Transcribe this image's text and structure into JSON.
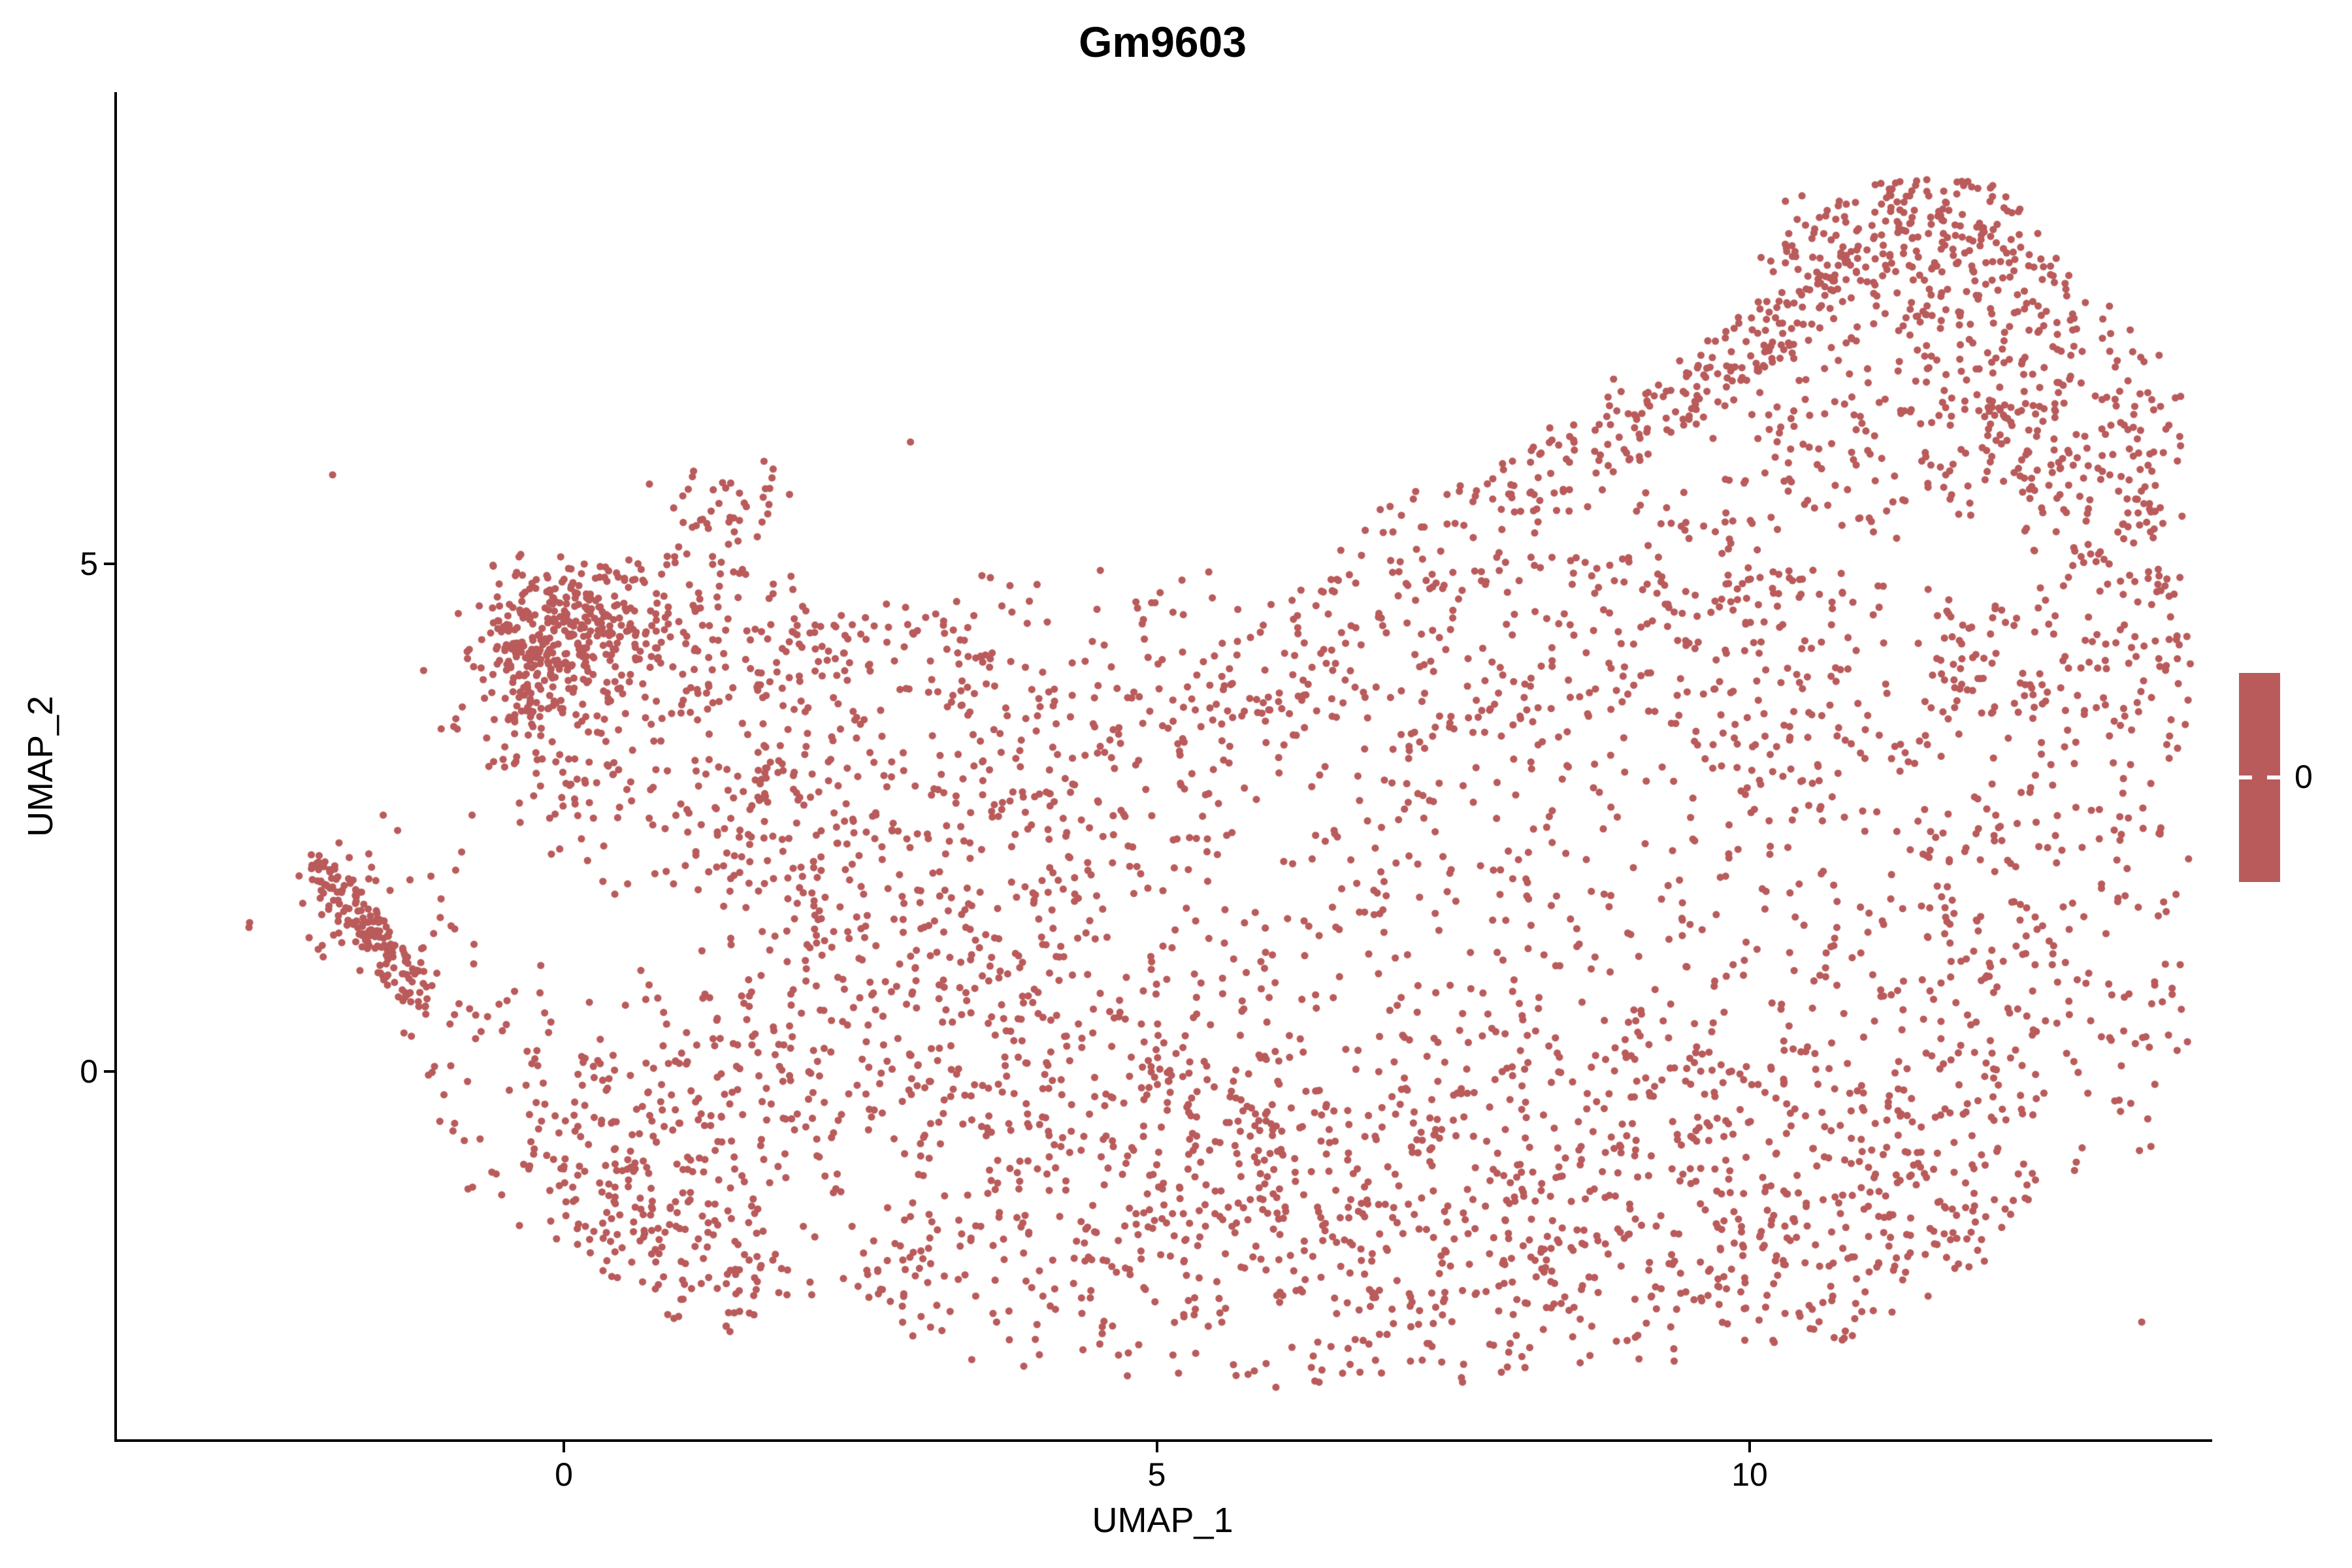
{
  "title": "Gm9603",
  "axes": {
    "x_label": "UMAP_1",
    "y_label": "UMAP_2",
    "x_ticks": [
      {
        "label": "0",
        "value": 0
      },
      {
        "label": "5",
        "value": 5
      },
      {
        "label": "10",
        "value": 10
      }
    ],
    "y_ticks": [
      {
        "label": "5",
        "value": 5
      },
      {
        "label": "0",
        "value": 0
      }
    ]
  },
  "legend": {
    "type": "colorbar",
    "tick_label": "0",
    "color": "#BA5B5B"
  },
  "colors": {
    "point": "#BA5B5B",
    "axis": "#000000",
    "background": "#FFFFFF",
    "text": "#000000"
  },
  "chart_data": {
    "type": "scatter",
    "title": "Gm9603",
    "xlabel": "UMAP_1",
    "ylabel": "UMAP_2",
    "xlim": [
      -3.78,
      13.85
    ],
    "ylim": [
      -3.62,
      9.65
    ],
    "x_ticks": [
      0,
      5,
      10
    ],
    "y_ticks": [
      0,
      5
    ],
    "grid": false,
    "legend_position": "right",
    "legend_values": [
      0
    ],
    "point_color": "#BA5B5B",
    "point_radius_px": 5.6,
    "n_points_estimate": 5400,
    "description": "UMAP embedding of single cells; every cell has expression value 0 for gene Gm9603, so all points share one red color. Shape: large main body sloping down-left, dense upper-left cluster, thin hooked tail at far left, and large peaked lobe at upper right.",
    "seed": 42,
    "clusters_format": [
      "cx",
      "cy",
      "rx",
      "ry",
      "rot_deg",
      "n",
      "dist(g=gauss,u=uniform)"
    ],
    "clusters": [
      [
        -1.78,
        1.62,
        0.62,
        0.17,
        -55,
        95,
        "u"
      ],
      [
        -1.42,
        1.02,
        0.55,
        0.17,
        -55,
        70,
        "u"
      ],
      [
        -1.55,
        1.55,
        0.85,
        0.75,
        0,
        45,
        "g"
      ],
      [
        0.15,
        4.3,
        0.8,
        0.7,
        0,
        240,
        "g"
      ],
      [
        0.75,
        3.8,
        1.75,
        1.35,
        0,
        300,
        "u"
      ],
      [
        -0.35,
        4.1,
        0.28,
        0.95,
        5,
        100,
        "g"
      ],
      [
        1.35,
        5.55,
        0.55,
        0.38,
        20,
        40,
        "g"
      ],
      [
        2.7,
        3.9,
        1.05,
        0.75,
        0,
        70,
        "u"
      ],
      [
        1.1,
        2.45,
        1.5,
        0.8,
        0,
        60,
        "u"
      ],
      [
        6.8,
        1.3,
        5.7,
        2.7,
        0,
        850,
        "u"
      ],
      [
        3.3,
        -0.7,
        3.2,
        1.8,
        0,
        420,
        "u"
      ],
      [
        8.7,
        -1.1,
        3.3,
        1.7,
        0,
        430,
        "u"
      ],
      [
        6.0,
        -2.15,
        3.5,
        0.95,
        0,
        240,
        "u"
      ],
      [
        11.0,
        -1.5,
        1.8,
        0.95,
        28,
        150,
        "u"
      ],
      [
        12.6,
        1.0,
        1.25,
        2.0,
        0,
        190,
        "u"
      ],
      [
        0.9,
        -0.5,
        1.3,
        1.4,
        0,
        120,
        "u"
      ],
      [
        -0.3,
        -0.2,
        0.85,
        1.6,
        25,
        80,
        "u"
      ],
      [
        0.9,
        -1.9,
        0.9,
        0.55,
        -35,
        70,
        "u"
      ],
      [
        4.6,
        4.0,
        2.0,
        0.95,
        0,
        130,
        "u"
      ],
      [
        7.6,
        4.35,
        1.8,
        0.95,
        0,
        140,
        "u"
      ],
      [
        3.1,
        2.1,
        1.9,
        1.3,
        0,
        160,
        "u"
      ],
      [
        10.6,
        3.9,
        1.6,
        1.0,
        0,
        150,
        "u"
      ],
      [
        9.7,
        5.0,
        0.9,
        0.5,
        0,
        60,
        "u"
      ],
      [
        11.35,
        8.0,
        1.35,
        0.55,
        -12,
        200,
        "u"
      ],
      [
        11.7,
        8.45,
        0.75,
        0.35,
        -10,
        60,
        "u"
      ],
      [
        12.8,
        6.3,
        0.85,
        1.55,
        8,
        220,
        "u"
      ],
      [
        11.2,
        6.5,
        1.5,
        1.15,
        0,
        210,
        "u"
      ],
      [
        9.8,
        6.95,
        1.6,
        0.28,
        42,
        130,
        "u"
      ],
      [
        9.3,
        6.3,
        1.0,
        0.8,
        0,
        25,
        "u"
      ],
      [
        13.35,
        4.0,
        0.5,
        1.1,
        0,
        75,
        "u"
      ],
      [
        12.3,
        3.9,
        0.75,
        0.85,
        0,
        70,
        "u"
      ],
      [
        7.4,
        5.3,
        1.0,
        0.5,
        20,
        45,
        "u"
      ],
      [
        8.35,
        5.9,
        0.6,
        0.45,
        35,
        40,
        "u"
      ],
      [
        6.5,
        1.0,
        6.5,
        4.0,
        0,
        150,
        "g"
      ]
    ]
  }
}
